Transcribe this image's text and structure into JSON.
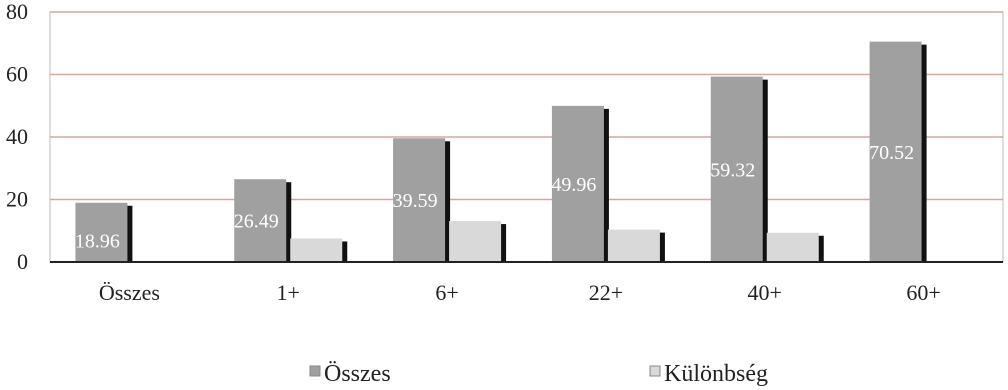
{
  "chart_data": {
    "type": "bar",
    "categories": [
      "Összes",
      "1+",
      "6+",
      "22+",
      "40+",
      "60+"
    ],
    "series": [
      {
        "name": "Összes",
        "values": [
          18.96,
          26.49,
          39.59,
          49.96,
          59.32,
          70.52
        ],
        "color": "#a0a0a0"
      },
      {
        "name": "Különbség",
        "values": [
          null,
          7.53,
          13.1,
          10.37,
          9.36,
          null
        ],
        "color": "#d9d9d9"
      }
    ],
    "data_labels": [
      "18.96",
      "26.49",
      "39.59",
      "49.96",
      "59.32",
      "70.52"
    ],
    "yticks": [
      "0",
      "20",
      "40",
      "60",
      "80"
    ],
    "ylim": [
      0,
      80
    ],
    "grid": true,
    "gridline_color": "#d4a7a0",
    "legend_placement": "bottom"
  }
}
